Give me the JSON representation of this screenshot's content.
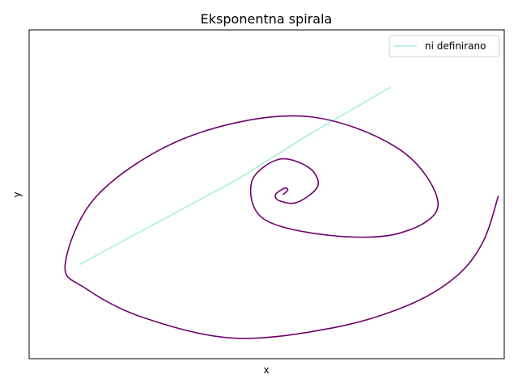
{
  "chart_data": {
    "type": "line",
    "title": "Eksponentna spirala",
    "xlabel": "x",
    "ylabel": "y",
    "xticks": [],
    "yticks": [],
    "xlim": [
      -0.85,
      0.73
    ],
    "ylim": [
      -0.8,
      0.8
    ],
    "legend": {
      "position": "top-right",
      "entries": [
        "ni definirano"
      ]
    },
    "grid": false,
    "series": [
      {
        "name": "",
        "color": "#6f006f",
        "kind": "exponential-spiral",
        "x": [
          -0.005,
          0.01,
          0.0,
          -0.03,
          -0.02,
          0.04,
          0.11,
          0.08,
          -0.02,
          -0.11,
          -0.07,
          0.15,
          0.38,
          0.51,
          0.38,
          0.06,
          -0.32,
          -0.62,
          -0.73,
          -0.66,
          -0.47,
          -0.17,
          0.16,
          0.41,
          0.57,
          0.66,
          0.71
        ],
        "y": [
          0.0,
          0.02,
          0.03,
          0.0,
          -0.03,
          -0.04,
          0.04,
          0.13,
          0.17,
          0.06,
          -0.12,
          -0.2,
          -0.19,
          -0.05,
          0.22,
          0.38,
          0.28,
          0.0,
          -0.34,
          -0.46,
          -0.6,
          -0.7,
          -0.65,
          -0.54,
          -0.4,
          -0.23,
          -0.01
        ]
      },
      {
        "name": "ni definirano",
        "color": "#a8f0d8",
        "x": [
          -0.68,
          -0.44,
          -0.16,
          0.08,
          0.35
        ],
        "y": [
          -0.34,
          -0.15,
          0.07,
          0.29,
          0.52
        ]
      }
    ]
  }
}
